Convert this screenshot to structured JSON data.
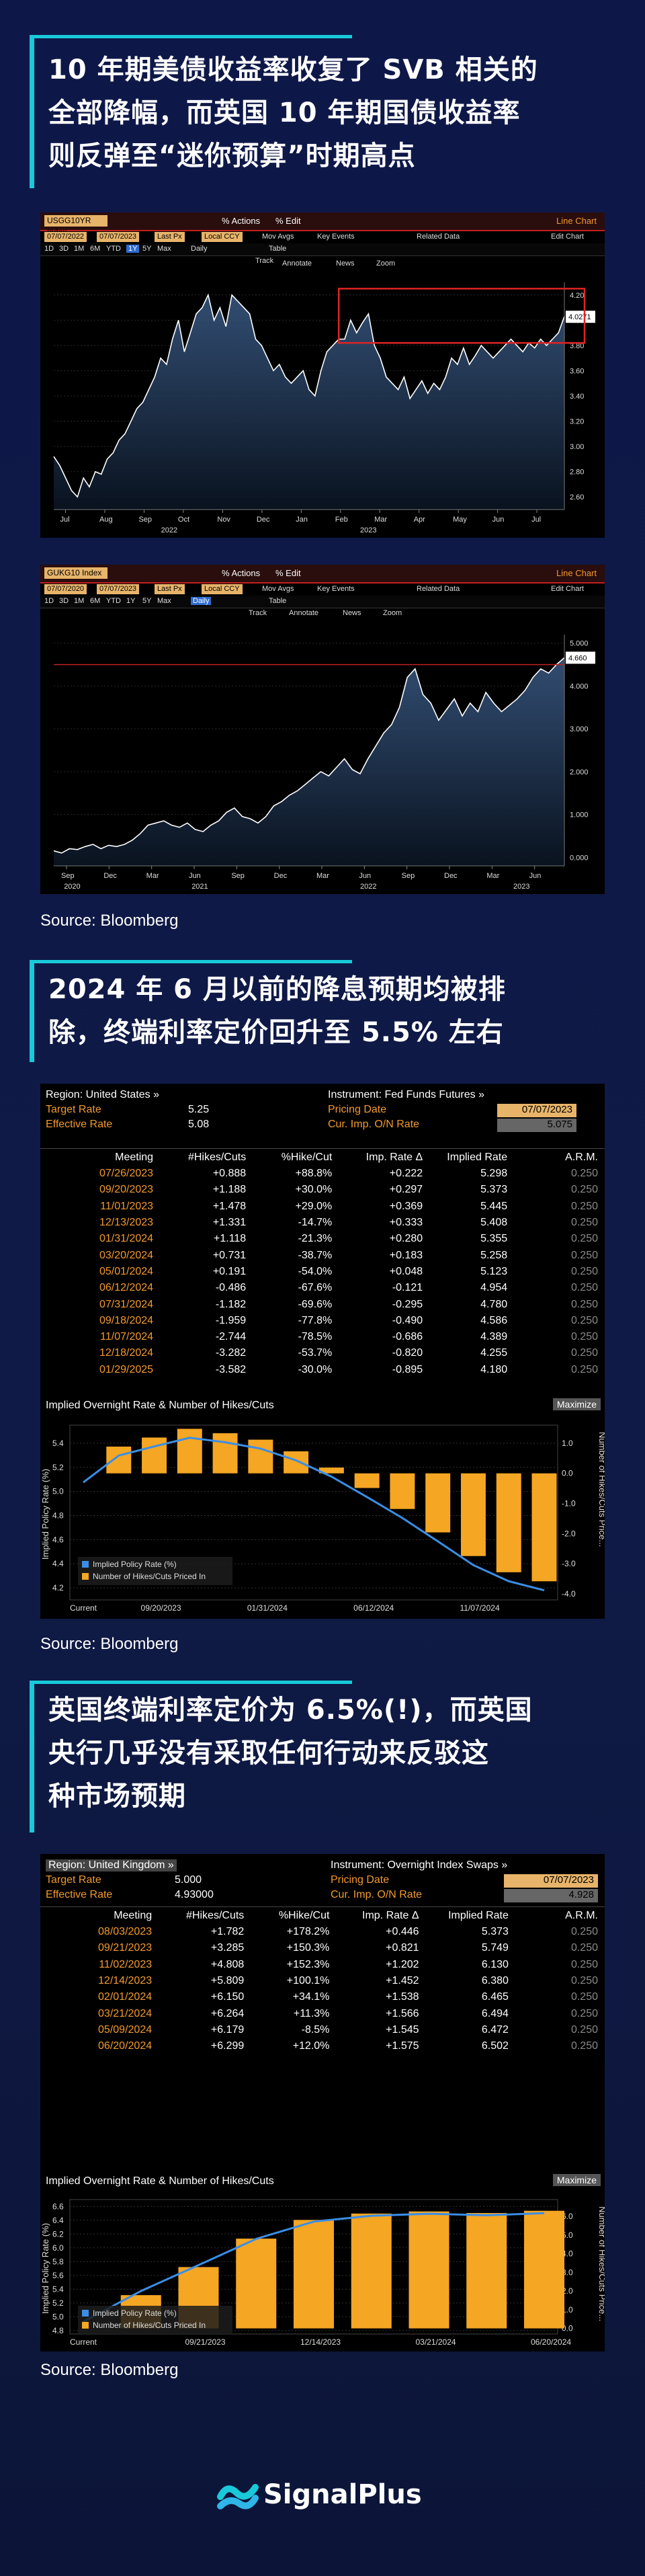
{
  "sections": {
    "s1": {
      "title_lines": [
        "10 年期美债收益率收复了 SVB 相关的",
        "全部降幅，而英国 10 年期国债收益率",
        "则反弹至“迷你预算”时期高点"
      ]
    },
    "s2": {
      "title_lines": [
        "2024 年 6 月以前的降息预期均被排",
        "除，终端利率定价回升至 5.5% 左右"
      ]
    },
    "s3": {
      "title_lines": [
        "英国终端利率定价为 6.5%(!)，而英国",
        "央行几乎没有采取任何行动来反驳这",
        "种市场预期"
      ]
    }
  },
  "source_label": "Source: Bloomberg",
  "bbg_ui": {
    "actions": "% Actions",
    "edit": "% Edit",
    "chart_type": "Line Chart",
    "last_px": "Last Px",
    "local_ccy": "Local CCY",
    "mov_avgs": "Mov Avgs",
    "key_events": "Key Events",
    "related_data": "Related Data",
    "edit_chart": "Edit Chart",
    "ranges": [
      "1D",
      "3D",
      "1M",
      "6M",
      "YTD",
      "1Y",
      "5Y",
      "Max"
    ],
    "daily": "Daily",
    "table": "Table",
    "track": "Track",
    "annotate": "Annotate",
    "news": "News",
    "zoom": "Zoom"
  },
  "chart1": {
    "ticker": "USGG10YR Index",
    "date_from": "07/07/2022",
    "date_to": "07/07/2023",
    "last_value": "4.0271",
    "chart_data": {
      "type": "line",
      "title": "",
      "x_ticks": [
        "Jul",
        "Aug",
        "Sep",
        "Oct",
        "Nov",
        "Dec",
        "Jan",
        "Feb",
        "Mar",
        "Apr",
        "May",
        "Jun",
        "Jul"
      ],
      "year_ticks": [
        "2022",
        "2023"
      ],
      "y_ticks": [
        "2.60",
        "2.80",
        "3.00",
        "3.20",
        "3.40",
        "3.60",
        "3.80",
        "4.00",
        "4.20"
      ],
      "ylim": [
        2.5,
        4.3
      ],
      "series": [
        {
          "values": [
            2.92,
            2.85,
            2.75,
            2.65,
            2.6,
            2.75,
            2.68,
            2.8,
            2.78,
            2.9,
            2.95,
            3.05,
            3.1,
            3.2,
            3.3,
            3.35,
            3.45,
            3.55,
            3.7,
            3.65,
            3.85,
            4.0,
            3.75,
            3.9,
            4.05,
            4.1,
            4.2,
            4.0,
            4.1,
            3.95,
            4.2,
            4.15,
            4.1,
            4.05,
            3.85,
            3.8,
            3.7,
            3.6,
            3.65,
            3.55,
            3.5,
            3.55,
            3.6,
            3.45,
            3.4,
            3.6,
            3.75,
            3.8,
            3.85,
            3.85,
            4.0,
            3.9,
            3.98,
            4.05,
            3.8,
            3.7,
            3.55,
            3.5,
            3.45,
            3.55,
            3.38,
            3.45,
            3.52,
            3.42,
            3.5,
            3.45,
            3.55,
            3.7,
            3.65,
            3.78,
            3.65,
            3.72,
            3.8,
            3.75,
            3.7,
            3.75,
            3.8,
            3.85,
            3.8,
            3.75,
            3.82,
            3.78,
            3.85,
            3.8,
            3.85,
            3.9,
            4.03
          ]
        }
      ],
      "highlight_box": "recent peak region near 4.0"
    }
  },
  "chart2": {
    "ticker": "GUKG10 Index",
    "date_from": "07/07/2020",
    "date_to": "07/07/2023",
    "last_value": "4.660",
    "chart_data": {
      "type": "line",
      "title": "",
      "x_ticks": [
        "Sep",
        "Dec",
        "Mar",
        "Jun",
        "Sep",
        "Dec",
        "Mar",
        "Jun",
        "Sep",
        "Dec",
        "Mar",
        "Jun"
      ],
      "year_ticks": [
        "2020",
        "2021",
        "2022",
        "2023"
      ],
      "y_ticks": [
        "0.000",
        "1.000",
        "2.000",
        "3.000",
        "4.000",
        "5.000"
      ],
      "ylim": [
        -0.2,
        5.2
      ],
      "series": [
        {
          "values": [
            0.15,
            0.1,
            0.2,
            0.18,
            0.25,
            0.3,
            0.2,
            0.28,
            0.25,
            0.3,
            0.4,
            0.55,
            0.75,
            0.8,
            0.85,
            0.75,
            0.7,
            0.8,
            0.65,
            0.6,
            0.75,
            0.85,
            1.05,
            1.15,
            0.95,
            0.9,
            0.8,
            0.95,
            1.2,
            1.3,
            1.45,
            1.55,
            1.7,
            1.85,
            2.0,
            1.9,
            2.1,
            2.3,
            2.05,
            1.95,
            2.3,
            2.6,
            2.9,
            3.1,
            3.5,
            4.2,
            4.4,
            3.8,
            3.6,
            3.2,
            3.45,
            3.7,
            3.3,
            3.6,
            3.4,
            3.85,
            3.6,
            3.4,
            3.55,
            3.7,
            3.9,
            4.2,
            4.4,
            4.3,
            4.5,
            4.66
          ]
        }
      ],
      "reference_line": 4.5
    }
  },
  "us_table": {
    "region_label": "Region: United States »",
    "instrument_label": "Instrument: Fed Funds Futures »",
    "target_rate_label": "Target Rate",
    "target_rate_value": "5.25",
    "effective_rate_label": "Effective Rate",
    "effective_rate_value": "5.08",
    "pricing_date_label": "Pricing Date",
    "pricing_date_value": "07/07/2023",
    "cur_imp_label": "Cur. Imp. O/N Rate",
    "cur_imp_value": "5.075",
    "columns": [
      "Meeting",
      "#Hikes/Cuts",
      "%Hike/Cut",
      "Imp. Rate Δ",
      "Implied Rate",
      "A.R.M."
    ],
    "rows": [
      [
        "07/26/2023",
        "+0.888",
        "+88.8%",
        "+0.222",
        "5.298",
        "0.250"
      ],
      [
        "09/20/2023",
        "+1.188",
        "+30.0%",
        "+0.297",
        "5.373",
        "0.250"
      ],
      [
        "11/01/2023",
        "+1.478",
        "+29.0%",
        "+0.369",
        "5.445",
        "0.250"
      ],
      [
        "12/13/2023",
        "+1.331",
        "-14.7%",
        "+0.333",
        "5.408",
        "0.250"
      ],
      [
        "01/31/2024",
        "+1.118",
        "-21.3%",
        "+0.280",
        "5.355",
        "0.250"
      ],
      [
        "03/20/2024",
        "+0.731",
        "-38.7%",
        "+0.183",
        "5.258",
        "0.250"
      ],
      [
        "05/01/2024",
        "+0.191",
        "-54.0%",
        "+0.048",
        "5.123",
        "0.250"
      ],
      [
        "06/12/2024",
        "-0.486",
        "-67.6%",
        "-0.121",
        "4.954",
        "0.250"
      ],
      [
        "07/31/2024",
        "-1.182",
        "-69.6%",
        "-0.295",
        "4.780",
        "0.250"
      ],
      [
        "09/18/2024",
        "-1.959",
        "-77.8%",
        "-0.490",
        "4.586",
        "0.250"
      ],
      [
        "11/07/2024",
        "-2.744",
        "-78.5%",
        "-0.686",
        "4.389",
        "0.250"
      ],
      [
        "12/18/2024",
        "-3.282",
        "-53.7%",
        "-0.820",
        "4.255",
        "0.250"
      ],
      [
        "01/29/2025",
        "-3.582",
        "-30.0%",
        "-0.895",
        "4.180",
        "0.250"
      ]
    ],
    "chart_title": "Implied Overnight Rate & Number of Hikes/Cuts",
    "maximize": "Maximize",
    "chart_data": {
      "type": "bar",
      "title": "Implied Overnight Rate & Number of Hikes/Cuts",
      "x_ticks": [
        "Current",
        "09/20/2023",
        "01/31/2024",
        "06/12/2024",
        "11/07/2024"
      ],
      "y_left_label": "Implied Policy Rate (%)",
      "y_left_ticks": [
        "4.2",
        "4.4",
        "4.6",
        "4.8",
        "5.0",
        "5.2",
        "5.4"
      ],
      "y_right_label": "Number of Hikes/Cuts Price...",
      "y_right_ticks": [
        "-4.0",
        "-3.0",
        "-2.0",
        "-1.0",
        "0.0",
        "1.0"
      ],
      "legend": [
        "Implied Policy Rate (%)",
        "Number of Hikes/Cuts Priced In"
      ],
      "bars": [
        0.888,
        1.188,
        1.478,
        1.331,
        1.118,
        0.731,
        0.191,
        -0.486,
        -1.182,
        -1.959,
        -2.744,
        -3.282,
        -3.582
      ],
      "line": [
        5.075,
        5.298,
        5.373,
        5.445,
        5.408,
        5.355,
        5.258,
        5.123,
        4.954,
        4.78,
        4.586,
        4.389,
        4.255,
        4.18
      ]
    }
  },
  "uk_table": {
    "region_label": "Region: United Kingdom »",
    "instrument_label": "Instrument: Overnight Index Swaps »",
    "target_rate_label": "Target Rate",
    "target_rate_value": "5.000",
    "effective_rate_label": "Effective Rate",
    "effective_rate_value": "4.93000",
    "pricing_date_label": "Pricing Date",
    "pricing_date_value": "07/07/2023",
    "cur_imp_label": "Cur. Imp. O/N Rate",
    "cur_imp_value": "4.928",
    "columns": [
      "Meeting",
      "#Hikes/Cuts",
      "%Hike/Cut",
      "Imp. Rate Δ",
      "Implied Rate",
      "A.R.M."
    ],
    "rows": [
      [
        "08/03/2023",
        "+1.782",
        "+178.2%",
        "+0.446",
        "5.373",
        "0.250"
      ],
      [
        "09/21/2023",
        "+3.285",
        "+150.3%",
        "+0.821",
        "5.749",
        "0.250"
      ],
      [
        "11/02/2023",
        "+4.808",
        "+152.3%",
        "+1.202",
        "6.130",
        "0.250"
      ],
      [
        "12/14/2023",
        "+5.809",
        "+100.1%",
        "+1.452",
        "6.380",
        "0.250"
      ],
      [
        "02/01/2024",
        "+6.150",
        "+34.1%",
        "+1.538",
        "6.465",
        "0.250"
      ],
      [
        "03/21/2024",
        "+6.264",
        "+11.3%",
        "+1.566",
        "6.494",
        "0.250"
      ],
      [
        "05/09/2024",
        "+6.179",
        "-8.5%",
        "+1.545",
        "6.472",
        "0.250"
      ],
      [
        "06/20/2024",
        "+6.299",
        "+12.0%",
        "+1.575",
        "6.502",
        "0.250"
      ]
    ],
    "chart_title": "Implied Overnight Rate & Number of Hikes/Cuts",
    "maximize": "Maximize",
    "chart_data": {
      "type": "bar",
      "title": "Implied Overnight Rate & Number of Hikes/Cuts",
      "x_ticks": [
        "Current",
        "09/21/2023",
        "12/14/2023",
        "03/21/2024",
        "06/20/2024"
      ],
      "y_left_label": "Implied Policy Rate (%)",
      "y_left_ticks": [
        "4.8",
        "5.0",
        "5.2",
        "5.4",
        "5.6",
        "5.8",
        "6.0",
        "6.2",
        "6.4",
        "6.6"
      ],
      "y_right_label": "Number of Hikes/Cuts Price...",
      "y_right_ticks": [
        "0.0",
        "1.0",
        "2.0",
        "3.0",
        "4.0",
        "5.0",
        "6.0"
      ],
      "legend": [
        "Implied Policy Rate (%)",
        "Number of Hikes/Cuts Priced In"
      ],
      "bars": [
        1.782,
        3.285,
        4.808,
        5.809,
        6.15,
        6.264,
        6.179,
        6.299
      ],
      "line": [
        4.928,
        5.373,
        5.749,
        6.13,
        6.38,
        6.465,
        6.494,
        6.472,
        6.502
      ]
    }
  },
  "brand": {
    "name": "SignalPlus",
    "accent": "#19c9d9",
    "bar_color": "#f5a623",
    "line_color": "#3a8ee6"
  }
}
